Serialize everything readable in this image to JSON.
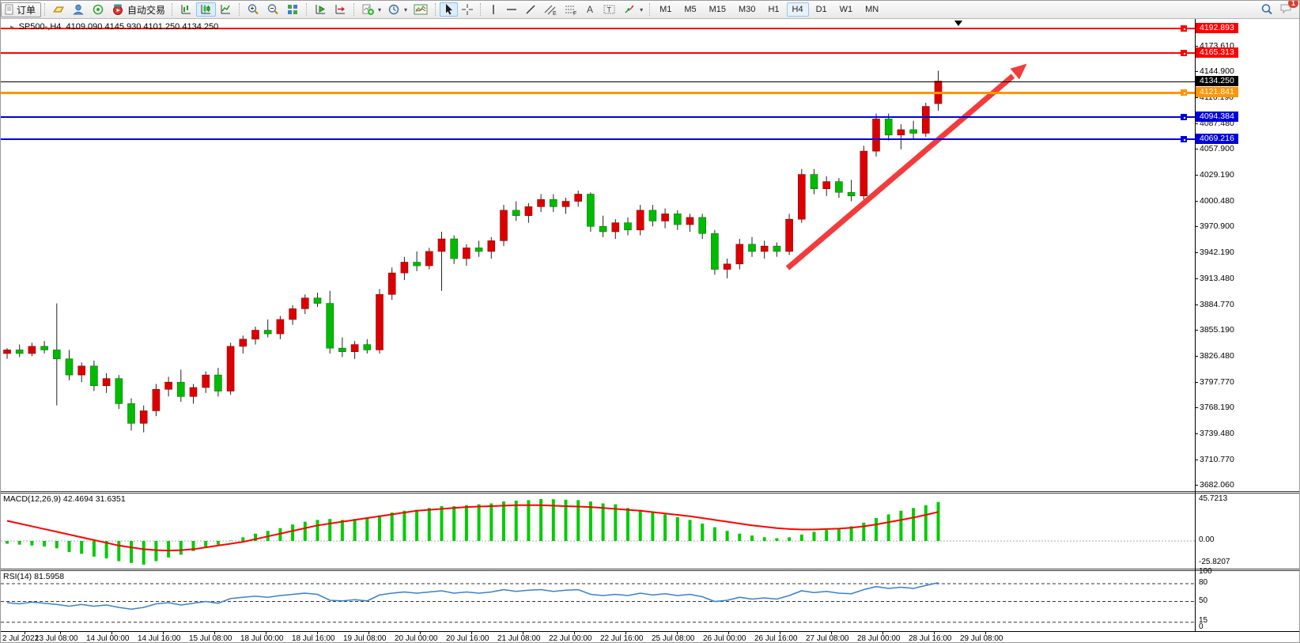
{
  "toolbar": {
    "order_label": "订单",
    "autotrade_label": "自动交易",
    "timeframes": [
      "M1",
      "M5",
      "M15",
      "M30",
      "H1",
      "H4",
      "D1",
      "W1",
      "MN"
    ],
    "active_timeframe": "H4",
    "notification_count": "1"
  },
  "chart": {
    "title": "SP500-,H4",
    "ohlc": "4109.090 4145.930 4101.250 4134.250",
    "price_axis": [
      "4173.610",
      "4144.900",
      "4116.190",
      "4087.480",
      "4057.900",
      "4029.190",
      "4000.480",
      "3970.900",
      "3942.190",
      "3913.480",
      "3884.770",
      "3855.190",
      "3826.480",
      "3797.770",
      "3768.190",
      "3739.480",
      "3710.770",
      "3682.060"
    ],
    "levels": [
      {
        "price": 4192.893,
        "label": "4192.893",
        "color": "#ff0000",
        "thick": 2
      },
      {
        "price": 4165.313,
        "label": "4165.313",
        "color": "#ff0000",
        "thick": 2
      },
      {
        "price": 4134.25,
        "label": "4134.250",
        "color": "#000000",
        "thick": 1,
        "current": true
      },
      {
        "price": 4121.841,
        "label": "4121.841",
        "color": "#ff9500",
        "thick": 3
      },
      {
        "price": 4094.384,
        "label": "4094.384",
        "color": "#0000dd",
        "thick": 2
      },
      {
        "price": 4069.216,
        "label": "4069.216",
        "color": "#0000dd",
        "thick": 2
      }
    ],
    "time_axis": [
      "2 Jul 2022",
      "13 Jul 08:00",
      "14 Jul 00:00",
      "14 Jul 16:00",
      "15 Jul 08:00",
      "18 Jul 00:00",
      "18 Jul 16:00",
      "19 Jul 08:00",
      "20 Jul 00:00",
      "20 Jul 16:00",
      "21 Jul 08:00",
      "22 Jul 00:00",
      "22 Jul 16:00",
      "25 Jul 08:00",
      "26 Jul 00:00",
      "26 Jul 16:00",
      "27 Jul 08:00",
      "28 Jul 00:00",
      "28 Jul 16:00",
      "29 Jul 08:00"
    ],
    "colors": {
      "bull": "#dd0000",
      "bear": "#00bb00",
      "wick": "#222222",
      "arrow": "#f23c3c"
    }
  },
  "chart_data": {
    "type": "candlestick",
    "symbol": "SP500-",
    "period": "H4",
    "candles_ohlc": [
      [
        3830,
        3836,
        3824,
        3834
      ],
      [
        3834,
        3840,
        3826,
        3830
      ],
      [
        3830,
        3842,
        3827,
        3838
      ],
      [
        3838,
        3844,
        3830,
        3834
      ],
      [
        3834,
        3886,
        3772,
        3824
      ],
      [
        3824,
        3834,
        3800,
        3806
      ],
      [
        3806,
        3820,
        3798,
        3816
      ],
      [
        3816,
        3822,
        3788,
        3794
      ],
      [
        3794,
        3808,
        3786,
        3802
      ],
      [
        3802,
        3806,
        3768,
        3774
      ],
      [
        3774,
        3780,
        3744,
        3752
      ],
      [
        3752,
        3772,
        3742,
        3766
      ],
      [
        3766,
        3796,
        3760,
        3790
      ],
      [
        3790,
        3804,
        3782,
        3798
      ],
      [
        3798,
        3812,
        3776,
        3782
      ],
      [
        3782,
        3796,
        3774,
        3792
      ],
      [
        3792,
        3810,
        3786,
        3806
      ],
      [
        3806,
        3814,
        3782,
        3788
      ],
      [
        3788,
        3842,
        3784,
        3838
      ],
      [
        3838,
        3850,
        3830,
        3846
      ],
      [
        3846,
        3860,
        3840,
        3856
      ],
      [
        3856,
        3868,
        3848,
        3852
      ],
      [
        3852,
        3872,
        3846,
        3868
      ],
      [
        3868,
        3884,
        3862,
        3880
      ],
      [
        3880,
        3896,
        3874,
        3892
      ],
      [
        3892,
        3898,
        3882,
        3886
      ],
      [
        3886,
        3900,
        3830,
        3836
      ],
      [
        3836,
        3848,
        3826,
        3832
      ],
      [
        3832,
        3844,
        3824,
        3840
      ],
      [
        3840,
        3846,
        3830,
        3834
      ],
      [
        3834,
        3902,
        3830,
        3896
      ],
      [
        3896,
        3926,
        3890,
        3920
      ],
      [
        3920,
        3938,
        3912,
        3932
      ],
      [
        3932,
        3944,
        3922,
        3928
      ],
      [
        3928,
        3948,
        3924,
        3944
      ],
      [
        3944,
        3966,
        3900,
        3958
      ],
      [
        3958,
        3962,
        3930,
        3936
      ],
      [
        3936,
        3952,
        3928,
        3948
      ],
      [
        3948,
        3956,
        3938,
        3944
      ],
      [
        3944,
        3960,
        3936,
        3956
      ],
      [
        3956,
        3996,
        3950,
        3990
      ],
      [
        3990,
        4000,
        3978,
        3984
      ],
      [
        3984,
        3998,
        3976,
        3994
      ],
      [
        3994,
        4008,
        3988,
        4002
      ],
      [
        4002,
        4008,
        3988,
        3994
      ],
      [
        3994,
        4004,
        3986,
        4000
      ],
      [
        4000,
        4012,
        3994,
        4008
      ],
      [
        4008,
        4010,
        3966,
        3972
      ],
      [
        3972,
        3984,
        3960,
        3966
      ],
      [
        3966,
        3980,
        3958,
        3976
      ],
      [
        3976,
        3982,
        3962,
        3968
      ],
      [
        3968,
        3996,
        3962,
        3990
      ],
      [
        3990,
        3996,
        3972,
        3978
      ],
      [
        3978,
        3992,
        3970,
        3986
      ],
      [
        3986,
        3990,
        3968,
        3974
      ],
      [
        3974,
        3986,
        3966,
        3982
      ],
      [
        3982,
        3986,
        3958,
        3964
      ],
      [
        3964,
        3968,
        3918,
        3924
      ],
      [
        3924,
        3936,
        3914,
        3930
      ],
      [
        3930,
        3958,
        3924,
        3952
      ],
      [
        3952,
        3960,
        3938,
        3944
      ],
      [
        3944,
        3956,
        3936,
        3950
      ],
      [
        3950,
        3954,
        3938,
        3944
      ],
      [
        3944,
        3986,
        3940,
        3980
      ],
      [
        3980,
        4036,
        3976,
        4030
      ],
      [
        4030,
        4036,
        4008,
        4014
      ],
      [
        4014,
        4028,
        4006,
        4022
      ],
      [
        4022,
        4026,
        4004,
        4010
      ],
      [
        4010,
        4024,
        4000,
        4006
      ],
      [
        4006,
        4062,
        4002,
        4056
      ],
      [
        4056,
        4098,
        4050,
        4092
      ],
      [
        4092,
        4098,
        4068,
        4074
      ],
      [
        4074,
        4086,
        4058,
        4080
      ],
      [
        4080,
        4090,
        4070,
        4076
      ],
      [
        4076,
        4110,
        4072,
        4106
      ],
      [
        4109.09,
        4145.93,
        4101.25,
        4134.25
      ]
    ]
  },
  "macd": {
    "label": "MACD(12,26,9)",
    "values": "42.4694 31.6351",
    "axis": [
      "45.7213",
      "0.00",
      "-25.8207"
    ],
    "hist_color": "#00cc00",
    "signal_color": "#ff0000",
    "histogram": [
      -3,
      -4,
      -5,
      -6,
      -8,
      -12,
      -14,
      -17,
      -19,
      -22,
      -24,
      -25.82,
      -22,
      -18,
      -15,
      -11,
      -7,
      -4,
      0.5,
      4,
      8,
      11,
      14,
      18,
      21,
      23,
      24,
      23,
      24,
      25,
      28,
      31,
      33,
      34,
      36,
      38,
      38,
      39,
      40,
      41,
      43,
      44,
      44.5,
      45.72,
      45.5,
      45,
      44.5,
      43,
      41,
      40,
      36,
      34,
      32,
      29,
      26,
      23,
      19,
      15,
      11,
      8,
      6,
      4,
      3,
      4,
      7,
      10,
      12,
      14,
      16,
      20,
      25,
      29,
      33,
      36,
      39,
      42.47
    ],
    "signal": [
      22,
      19,
      16,
      13,
      10,
      7,
      4,
      1,
      -2,
      -5,
      -7,
      -9,
      -10,
      -10.5,
      -10,
      -9,
      -7,
      -5,
      -3,
      -1,
      2,
      5,
      8,
      11,
      14,
      17,
      19,
      21,
      23,
      25,
      27,
      29,
      31,
      33,
      34,
      35,
      36,
      37,
      37.5,
      38,
      38.5,
      39,
      39,
      39,
      38.5,
      38,
      37.5,
      37,
      36,
      35,
      34,
      33,
      31.5,
      30,
      28.5,
      27,
      25,
      23,
      21,
      19,
      17,
      15.5,
      14,
      13,
      12.5,
      12.5,
      13,
      13.5,
      14.5,
      16,
      18,
      20.5,
      23,
      25.5,
      28.5,
      31.64
    ]
  },
  "rsi": {
    "label": "RSI(14)",
    "value": "81.5958",
    "axis": [
      "100",
      "80",
      "50",
      "15",
      "0"
    ],
    "level_lines": [
      80,
      50,
      15
    ],
    "line_color": "#3b82cc",
    "line": [
      48,
      46,
      49,
      47,
      45,
      42,
      45,
      42,
      44,
      40,
      37,
      40,
      46,
      48,
      44,
      47,
      50,
      47,
      55,
      57,
      59,
      57,
      60,
      62,
      64,
      62,
      52,
      51,
      53,
      51,
      61,
      64,
      66,
      64,
      66,
      68,
      64,
      66,
      64,
      66,
      70,
      67,
      69,
      70,
      67,
      69,
      70,
      62,
      60,
      62,
      60,
      64,
      61,
      63,
      60,
      62,
      58,
      50,
      52,
      57,
      54,
      56,
      54,
      60,
      68,
      65,
      67,
      64,
      63,
      70,
      75,
      72,
      74,
      72,
      77,
      81.6
    ]
  }
}
